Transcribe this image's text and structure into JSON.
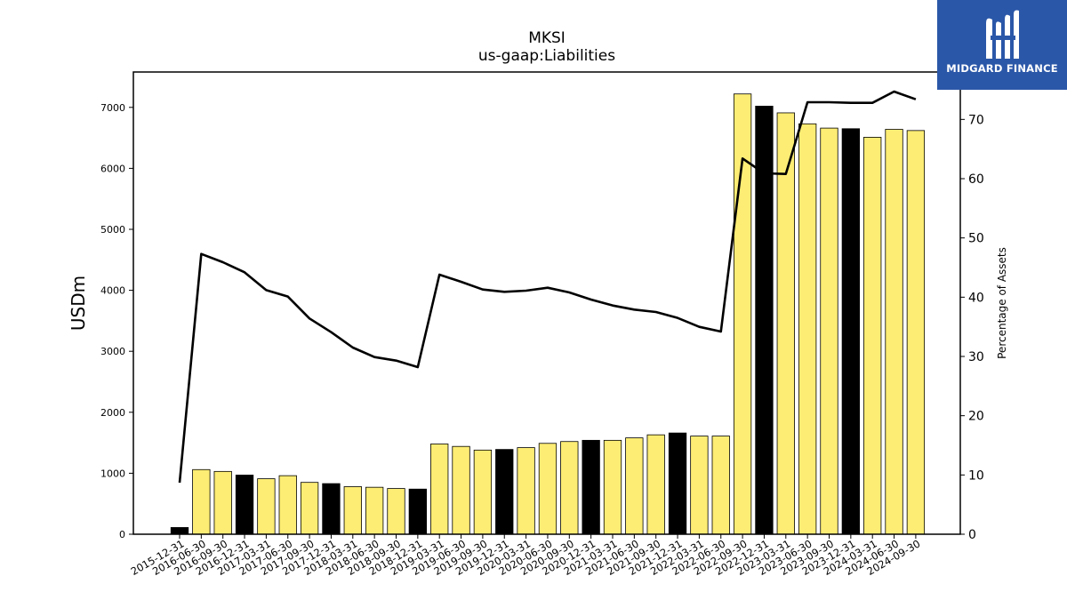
{
  "chart_data": {
    "type": "bar",
    "title": "MKSI",
    "subtitle": "us-gaap:Liabilities",
    "ylabel": "USDm",
    "y2label": "Percentage of Assets",
    "ylim": [
      0,
      7580
    ],
    "y2lim": [
      0,
      78
    ],
    "yticks": [
      0,
      1000,
      2000,
      3000,
      4000,
      5000,
      6000,
      7000
    ],
    "y2ticks": [
      0,
      10,
      20,
      30,
      40,
      50,
      60,
      70
    ],
    "categories": [
      "2015-12-31",
      "2016-06-30",
      "2016-09-30",
      "2016-12-31",
      "2017-03-31",
      "2017-06-30",
      "2017-09-30",
      "2017-12-31",
      "2018-03-31",
      "2018-06-30",
      "2018-09-30",
      "2018-12-31",
      "2019-03-31",
      "2019-06-30",
      "2019-09-30",
      "2019-12-31",
      "2020-03-31",
      "2020-06-30",
      "2020-09-30",
      "2020-12-31",
      "2021-03-31",
      "2021-06-30",
      "2021-09-30",
      "2021-12-31",
      "2022-03-31",
      "2022-06-30",
      "2022-09-30",
      "2022-12-31",
      "2023-03-31",
      "2023-06-30",
      "2023-09-30",
      "2023-12-31",
      "2024-03-31",
      "2024-06-30",
      "2024-09-30"
    ],
    "series": [
      {
        "type": "bar",
        "values": [
          110,
          1060,
          1030,
          970,
          910,
          960,
          850,
          830,
          780,
          770,
          750,
          740,
          1480,
          1440,
          1380,
          1390,
          1420,
          1490,
          1520,
          1540,
          1540,
          1580,
          1630,
          1660,
          1610,
          1610,
          7220,
          7020,
          6910,
          6730,
          6660,
          6650,
          6510,
          6640,
          6620
        ],
        "highlight": [
          true,
          false,
          false,
          true,
          false,
          false,
          false,
          true,
          false,
          false,
          false,
          true,
          false,
          false,
          false,
          true,
          false,
          false,
          false,
          true,
          false,
          false,
          false,
          true,
          false,
          false,
          false,
          true,
          false,
          false,
          false,
          true,
          false,
          false,
          false
        ]
      },
      {
        "type": "line",
        "axis": "right",
        "values": [
          8.7,
          47.3,
          45.9,
          44.2,
          41.2,
          40.1,
          36.4,
          34.1,
          31.5,
          29.9,
          29.3,
          28.2,
          43.8,
          42.6,
          41.3,
          40.9,
          41.1,
          41.6,
          40.8,
          39.6,
          38.6,
          37.9,
          37.5,
          36.5,
          35.0,
          34.2,
          63.4,
          60.9,
          60.8,
          72.9,
          72.9,
          72.8,
          72.8,
          74.7,
          73.4
        ]
      }
    ],
    "colors": {
      "bar": "#fded74",
      "bar_highlight": "#000000",
      "line": "#000000"
    }
  },
  "logo": {
    "text": "MIDGARD FINANCE",
    "background": "#2b57a8"
  }
}
